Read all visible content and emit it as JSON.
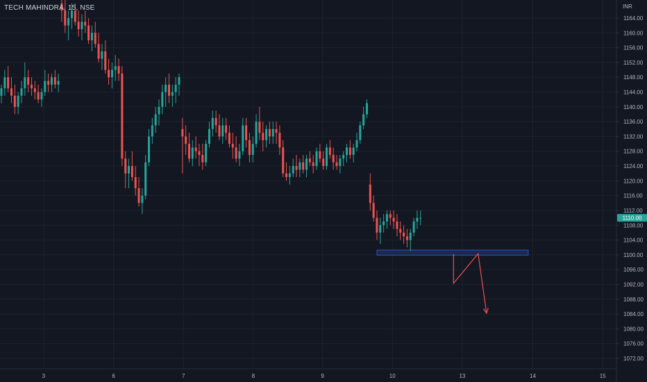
{
  "header": {
    "symbol": "TECH MAHINDRA, 15, NSE"
  },
  "y_axis": {
    "unit": "INR"
  },
  "price_tag": {
    "value": "1110.00"
  },
  "colors": {
    "bg": "#131722",
    "grid": "#1e222d",
    "up": "#26a69a",
    "down": "#ef5350",
    "axis_text": "#b2b5be",
    "support_fill": "#1e2a44",
    "support_border": "#2962ff",
    "arrow": "#ef5350"
  },
  "chart_data": {
    "type": "candlestick",
    "ylim": [
      1069,
      1168
    ],
    "y_ticks": [
      1164,
      1160,
      1156,
      1152,
      1148,
      1144,
      1140,
      1136,
      1132,
      1128,
      1124,
      1120,
      1116,
      1112,
      1108,
      1104,
      1100,
      1096,
      1092,
      1088,
      1084,
      1080,
      1076,
      1072
    ],
    "x_ticks": [
      "3",
      "6",
      "7",
      "8",
      "9",
      "10",
      "13",
      "14",
      "15"
    ],
    "x_tick_fracs": [
      0.0675,
      0.1755,
      0.2835,
      0.3915,
      0.4985,
      0.6065,
      0.7145,
      0.8235,
      0.9315
    ],
    "candles": [
      [
        1143,
        1146,
        1141,
        1145
      ],
      [
        1145,
        1150,
        1143,
        1148
      ],
      [
        1148,
        1151,
        1144,
        1145
      ],
      [
        1145,
        1148,
        1141,
        1143
      ],
      [
        1143,
        1146,
        1138,
        1140
      ],
      [
        1140,
        1144,
        1138,
        1143
      ],
      [
        1143,
        1147,
        1141,
        1145
      ],
      [
        1145,
        1152,
        1143,
        1148
      ],
      [
        1148,
        1150,
        1144,
        1146
      ],
      [
        1146,
        1148,
        1143,
        1145
      ],
      [
        1145,
        1147,
        1142,
        1144
      ],
      [
        1144,
        1146,
        1141,
        1142
      ],
      [
        1142,
        1145,
        1140,
        1144
      ],
      [
        1144,
        1150,
        1143,
        1147
      ],
      [
        1147,
        1149,
        1144,
        1146
      ],
      [
        1146,
        1149,
        1144,
        1148
      ],
      [
        1148,
        1150,
        1145,
        1146
      ],
      [
        1146,
        1149,
        1144,
        1147
      ],
      [
        1168,
        1172,
        1163,
        1166
      ],
      [
        1166,
        1169,
        1160,
        1162
      ],
      [
        1162,
        1166,
        1158,
        1164
      ],
      [
        1164,
        1168,
        1161,
        1166
      ],
      [
        1166,
        1168,
        1162,
        1163
      ],
      [
        1163,
        1166,
        1159,
        1161
      ],
      [
        1161,
        1165,
        1158,
        1163
      ],
      [
        1163,
        1166,
        1160,
        1162
      ],
      [
        1162,
        1164,
        1157,
        1158
      ],
      [
        1158,
        1162,
        1155,
        1160
      ],
      [
        1160,
        1163,
        1156,
        1157
      ],
      [
        1157,
        1160,
        1152,
        1153
      ],
      [
        1153,
        1157,
        1150,
        1155
      ],
      [
        1155,
        1158,
        1149,
        1150
      ],
      [
        1150,
        1153,
        1146,
        1148
      ],
      [
        1148,
        1152,
        1145,
        1150
      ],
      [
        1150,
        1154,
        1147,
        1151
      ],
      [
        1151,
        1153,
        1147,
        1149
      ],
      [
        1149,
        1151,
        1124,
        1126
      ],
      [
        1126,
        1128,
        1118,
        1122
      ],
      [
        1122,
        1126,
        1118,
        1124
      ],
      [
        1124,
        1128,
        1120,
        1121
      ],
      [
        1121,
        1124,
        1116,
        1118
      ],
      [
        1118,
        1121,
        1113,
        1114
      ],
      [
        1114,
        1118,
        1111,
        1116
      ],
      [
        1116,
        1127,
        1115,
        1125
      ],
      [
        1125,
        1134,
        1124,
        1132
      ],
      [
        1132,
        1137,
        1130,
        1135
      ],
      [
        1135,
        1140,
        1133,
        1138
      ],
      [
        1138,
        1142,
        1135,
        1140
      ],
      [
        1140,
        1146,
        1138,
        1144
      ],
      [
        1144,
        1148,
        1140,
        1146
      ],
      [
        1146,
        1149,
        1141,
        1143
      ],
      [
        1143,
        1146,
        1140,
        1144
      ],
      [
        1144,
        1148,
        1141,
        1146
      ],
      [
        1146,
        1149,
        1143,
        1148
      ],
      [
        1134,
        1137,
        1122,
        1132
      ],
      [
        1132,
        1135,
        1127,
        1130
      ],
      [
        1130,
        1133,
        1125,
        1126
      ],
      [
        1126,
        1131,
        1124,
        1129
      ],
      [
        1129,
        1132,
        1126,
        1128
      ],
      [
        1128,
        1130,
        1124,
        1127
      ],
      [
        1127,
        1130,
        1123,
        1125
      ],
      [
        1125,
        1131,
        1124,
        1130
      ],
      [
        1130,
        1136,
        1129,
        1134
      ],
      [
        1134,
        1139,
        1132,
        1137
      ],
      [
        1137,
        1139,
        1133,
        1135
      ],
      [
        1135,
        1138,
        1131,
        1132
      ],
      [
        1132,
        1137,
        1130,
        1135
      ],
      [
        1135,
        1137,
        1131,
        1133
      ],
      [
        1133,
        1135,
        1129,
        1130
      ],
      [
        1130,
        1133,
        1126,
        1129
      ],
      [
        1129,
        1132,
        1125,
        1126
      ],
      [
        1126,
        1130,
        1124,
        1128
      ],
      [
        1128,
        1137,
        1127,
        1135
      ],
      [
        1135,
        1137,
        1129,
        1131
      ],
      [
        1131,
        1133,
        1125,
        1127
      ],
      [
        1127,
        1132,
        1125,
        1130
      ],
      [
        1130,
        1138,
        1129,
        1136
      ],
      [
        1136,
        1140,
        1131,
        1133
      ],
      [
        1133,
        1136,
        1128,
        1131
      ],
      [
        1131,
        1135,
        1129,
        1134
      ],
      [
        1134,
        1136,
        1130,
        1132
      ],
      [
        1132,
        1136,
        1130,
        1134
      ],
      [
        1134,
        1136,
        1130,
        1133
      ],
      [
        1133,
        1135,
        1127,
        1129
      ],
      [
        1129,
        1131,
        1121,
        1122
      ],
      [
        1122,
        1125,
        1120,
        1121
      ],
      [
        1121,
        1124,
        1119,
        1122
      ],
      [
        1122,
        1126,
        1121,
        1124
      ],
      [
        1124,
        1127,
        1121,
        1123
      ],
      [
        1123,
        1126,
        1121,
        1125
      ],
      [
        1125,
        1127,
        1122,
        1123
      ],
      [
        1123,
        1127,
        1121,
        1126
      ],
      [
        1126,
        1128,
        1124,
        1125
      ],
      [
        1125,
        1127,
        1122,
        1124
      ],
      [
        1124,
        1129,
        1123,
        1128
      ],
      [
        1128,
        1130,
        1125,
        1126
      ],
      [
        1126,
        1128,
        1123,
        1124
      ],
      [
        1124,
        1130,
        1123,
        1129
      ],
      [
        1129,
        1131,
        1126,
        1127
      ],
      [
        1127,
        1129,
        1123,
        1125
      ],
      [
        1125,
        1127,
        1123,
        1124
      ],
      [
        1124,
        1127,
        1122,
        1126
      ],
      [
        1126,
        1128,
        1124,
        1127
      ],
      [
        1127,
        1130,
        1125,
        1129
      ],
      [
        1129,
        1131,
        1126,
        1127
      ],
      [
        1127,
        1130,
        1125,
        1129
      ],
      [
        1129,
        1133,
        1128,
        1131
      ],
      [
        1131,
        1136,
        1130,
        1135
      ],
      [
        1135,
        1140,
        1134,
        1138
      ],
      [
        1138,
        1142,
        1137,
        1141
      ],
      [
        1119,
        1122,
        1112,
        1114
      ],
      [
        1114,
        1116,
        1109,
        1110
      ],
      [
        1110,
        1112,
        1104,
        1106
      ],
      [
        1106,
        1110,
        1103,
        1108
      ],
      [
        1108,
        1111,
        1106,
        1109
      ],
      [
        1109,
        1112,
        1107,
        1111
      ],
      [
        1111,
        1112,
        1108,
        1110
      ],
      [
        1110,
        1112,
        1107,
        1109
      ],
      [
        1109,
        1111,
        1105,
        1107
      ],
      [
        1107,
        1109,
        1104,
        1106
      ],
      [
        1106,
        1108,
        1103,
        1105
      ],
      [
        1105,
        1107,
        1102,
        1104
      ],
      [
        1104,
        1107,
        1101,
        1106
      ],
      [
        1106,
        1110,
        1105,
        1109
      ],
      [
        1109,
        1112,
        1107,
        1110
      ],
      [
        1110,
        1112,
        1108,
        1110
      ]
    ],
    "support_zone": {
      "from": 1100.2,
      "to": 1101.0,
      "start_candle": 112,
      "end_frac": 0.8165
    },
    "projection": [
      [
        1100.2,
        0.701
      ],
      [
        1092.3,
        0.701
      ],
      [
        1100.3,
        0.739
      ],
      [
        1084.2,
        0.752
      ]
    ]
  }
}
